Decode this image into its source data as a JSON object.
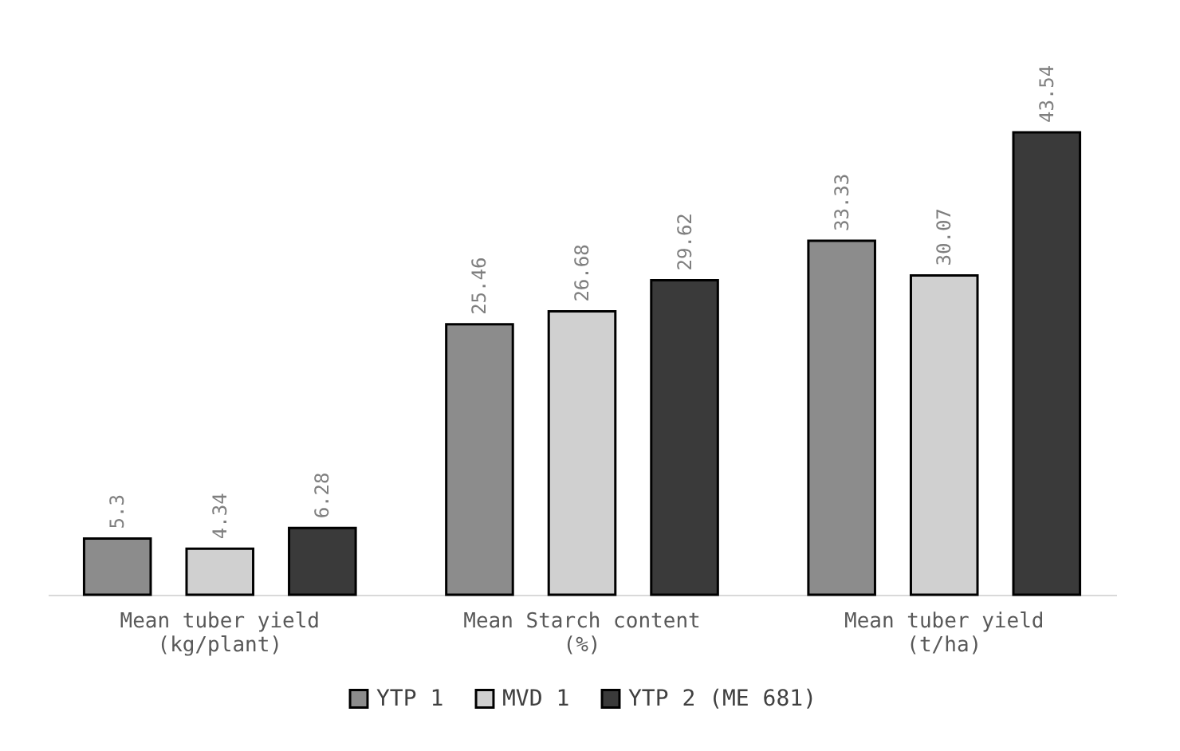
{
  "chart_data": {
    "type": "bar",
    "categories": [
      "Mean tuber yield (kg/plant)",
      "Mean Starch content (%)",
      "Mean tuber yield (t/ha)"
    ],
    "series": [
      {
        "name": "YTP 1",
        "color": "#8c8c8c",
        "values": [
          5.3,
          25.46,
          33.33
        ]
      },
      {
        "name": "MVD 1",
        "color": "#d0d0d0",
        "values": [
          4.34,
          26.68,
          30.07
        ]
      },
      {
        "name": "YTP 2 (ME 681)",
        "color": "#3a3a3a",
        "values": [
          6.28,
          29.62,
          43.54
        ]
      }
    ],
    "data_labels": true,
    "legend": "bottom"
  }
}
